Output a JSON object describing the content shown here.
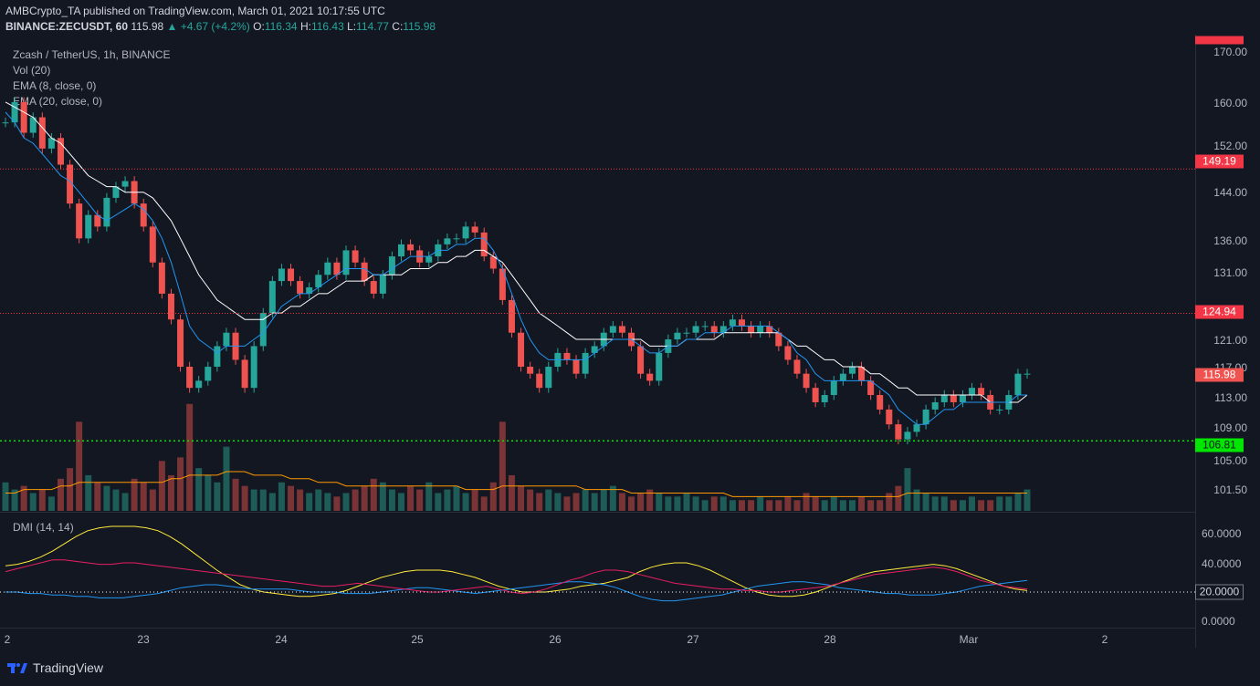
{
  "header": {
    "publisher": "AMBCrypto_TA published on TradingView.com, March 01, 2021 10:17:55 UTC",
    "symbol": "BINANCE:ZECUSDT, 60",
    "last": "115.98",
    "change": "▲ +4.67 (+4.2%)",
    "o_label": "O:",
    "o_value": "116.34",
    "h_label": "H:",
    "h_value": "116.43",
    "l_label": "L:",
    "l_value": "114.77",
    "c_label": "C:",
    "c_value": "115.98"
  },
  "legend": {
    "title": "Zcash / TetherUS, 1h, BINANCE",
    "vol": "Vol (20)",
    "ema8": "EMA (8, close, 0)",
    "ema20": "EMA (20, close, 0)",
    "dmi": "DMI (14, 14)"
  },
  "price_axis": {
    "labels": [
      "170.00",
      "160.00",
      "152.00",
      "144.00",
      "136.00",
      "131.00",
      "121.00",
      "117.00",
      "113.00",
      "109.00",
      "105.00",
      "101.50"
    ],
    "tags": [
      {
        "label": "149.19",
        "color": "#f23645"
      },
      {
        "label": "124.94",
        "color": "#f23645"
      },
      {
        "label": "115.98",
        "color": "#ef5350"
      },
      {
        "label": "106.81",
        "color": "#00e600"
      }
    ]
  },
  "dmi_axis": {
    "labels": [
      "60.0000",
      "40.0000",
      "20.0000",
      "0.0000"
    ]
  },
  "time_axis": {
    "labels": [
      "2",
      "23",
      "24",
      "25",
      "26",
      "27",
      "28",
      "Mar",
      "2"
    ]
  },
  "brand": {
    "name": "TradingView"
  },
  "colors": {
    "up": "#26a69a",
    "down": "#ef5350",
    "ema8": "#2196f3",
    "ema20": "#ffffff",
    "resistance": "#f23645",
    "support": "#00e600",
    "adx": "#ffeb3b",
    "di_plus": "#2196f3",
    "di_minus": "#e91e63"
  },
  "chart_data": {
    "type": "candlestick",
    "title": "Zcash / TetherUS, 1h, BINANCE",
    "x_labels": [
      "2",
      "23",
      "24",
      "25",
      "26",
      "27",
      "28",
      "Mar",
      "2"
    ],
    "y_scale": "log",
    "ylim": [
      98,
      176
    ],
    "horizontal_levels": [
      149.19,
      124.94,
      106.81
    ],
    "price_path": [
      158,
      162,
      156,
      159,
      153,
      155,
      150,
      143,
      137,
      141,
      139,
      144,
      146,
      147,
      143,
      139,
      133,
      128,
      124,
      117,
      114,
      115,
      117,
      120,
      122,
      118,
      114,
      120,
      125,
      130,
      132,
      130,
      128,
      129,
      131,
      133,
      131,
      135,
      133,
      130,
      128,
      131,
      134,
      136,
      135,
      133,
      134,
      136,
      137,
      137,
      139,
      138,
      134,
      132,
      127,
      122,
      117,
      116,
      114,
      117,
      119,
      118,
      116,
      119,
      120,
      122,
      123,
      122,
      120,
      116,
      115,
      119,
      121,
      122,
      122,
      123,
      123,
      122,
      123,
      124,
      123,
      122,
      123,
      122,
      120,
      118,
      116,
      114,
      112,
      113,
      115,
      116,
      117,
      115,
      113,
      111,
      109,
      107,
      108,
      109,
      111,
      112,
      113,
      112,
      113,
      114,
      113,
      111,
      111,
      113,
      116,
      116
    ],
    "ema8": [
      160,
      158,
      155,
      154,
      152,
      150,
      148,
      147,
      145,
      143,
      141,
      140,
      141,
      142,
      143,
      142,
      140,
      137,
      133,
      128,
      123,
      121,
      120,
      119,
      120,
      120,
      120,
      121,
      122,
      124,
      126,
      127,
      128,
      128,
      129,
      130,
      131,
      132,
      132,
      132,
      131,
      131,
      132,
      133,
      134,
      134,
      134,
      135,
      135,
      136,
      136,
      137,
      137,
      135,
      132,
      128,
      124,
      121,
      119,
      118,
      118,
      118,
      118,
      118,
      119,
      120,
      121,
      121,
      121,
      120,
      119,
      119,
      120,
      120,
      121,
      121,
      122,
      122,
      122,
      123,
      123,
      123,
      123,
      123,
      122,
      121,
      119,
      118,
      116,
      115,
      115,
      115,
      115,
      115,
      115,
      114,
      113,
      111,
      110,
      109,
      109,
      110,
      111,
      111,
      112,
      112,
      112,
      112,
      112,
      112,
      113,
      113
    ],
    "ema20": [
      162,
      161,
      160,
      159,
      157,
      155,
      154,
      152,
      150,
      148,
      147,
      146,
      146,
      145,
      145,
      145,
      144,
      142,
      140,
      137,
      134,
      131,
      129,
      127,
      126,
      125,
      124,
      124,
      124,
      125,
      125,
      126,
      126,
      127,
      128,
      128,
      129,
      130,
      130,
      130,
      131,
      131,
      131,
      131,
      132,
      132,
      132,
      133,
      133,
      134,
      134,
      135,
      135,
      134,
      133,
      131,
      129,
      127,
      125,
      124,
      123,
      122,
      121,
      121,
      121,
      121,
      121,
      121,
      121,
      121,
      120,
      120,
      120,
      120,
      121,
      121,
      121,
      121,
      122,
      122,
      122,
      122,
      122,
      122,
      122,
      121,
      120,
      120,
      119,
      118,
      118,
      117,
      117,
      117,
      116,
      116,
      115,
      114,
      114,
      113,
      113,
      113,
      113,
      113,
      113,
      113,
      113,
      112,
      112,
      112,
      112,
      113
    ],
    "volume": [
      8,
      6,
      7,
      5,
      6,
      4,
      9,
      12,
      25,
      10,
      8,
      7,
      6,
      5,
      9,
      8,
      6,
      14,
      10,
      15,
      30,
      12,
      10,
      8,
      18,
      9,
      7,
      6,
      6,
      5,
      8,
      7,
      6,
      5,
      6,
      5,
      4,
      5,
      6,
      7,
      9,
      8,
      6,
      5,
      7,
      6,
      8,
      5,
      6,
      7,
      5,
      6,
      4,
      8,
      25,
      10,
      7,
      6,
      5,
      6,
      5,
      4,
      5,
      6,
      5,
      6,
      7,
      5,
      4,
      5,
      6,
      5,
      4,
      4,
      5,
      4,
      3,
      4,
      4,
      3,
      3,
      3,
      4,
      3,
      3,
      4,
      3,
      5,
      4,
      3,
      4,
      3,
      3,
      4,
      3,
      3,
      5,
      7,
      12,
      6,
      5,
      4,
      4,
      3,
      3,
      4,
      3,
      3,
      4,
      4,
      5,
      6
    ],
    "volume_ma": [
      5,
      5,
      6,
      6,
      6,
      6,
      7,
      7,
      8,
      8,
      8,
      8,
      8,
      8,
      8,
      8,
      8,
      8,
      9,
      9,
      10,
      10,
      10,
      10,
      11,
      11,
      11,
      10,
      10,
      10,
      10,
      9,
      9,
      9,
      8,
      8,
      8,
      7,
      7,
      7,
      7,
      7,
      7,
      7,
      7,
      7,
      7,
      7,
      7,
      7,
      6,
      6,
      6,
      6,
      7,
      7,
      7,
      7,
      7,
      7,
      7,
      7,
      7,
      6,
      6,
      6,
      6,
      6,
      5,
      5,
      5,
      5,
      5,
      5,
      5,
      5,
      5,
      5,
      5,
      4,
      4,
      4,
      4,
      4,
      4,
      4,
      4,
      4,
      4,
      4,
      4,
      4,
      4,
      4,
      4,
      4,
      4,
      4,
      5,
      5,
      5,
      5,
      5,
      5,
      5,
      5,
      5,
      5,
      5,
      5,
      5,
      5
    ],
    "dmi": {
      "adx": [
        38,
        39,
        41,
        44,
        48,
        53,
        58,
        62,
        64,
        65,
        65,
        65,
        64,
        62,
        58,
        53,
        47,
        41,
        35,
        30,
        25,
        22,
        20,
        19,
        18,
        17,
        17,
        18,
        19,
        21,
        24,
        27,
        30,
        32,
        34,
        35,
        35,
        35,
        34,
        32,
        30,
        27,
        24,
        22,
        20,
        20,
        20,
        21,
        22,
        24,
        25,
        26,
        28,
        30,
        34,
        37,
        39,
        40,
        40,
        38,
        35,
        31,
        27,
        23,
        20,
        18,
        17,
        17,
        18,
        20,
        23,
        26,
        29,
        32,
        34,
        35,
        36,
        37,
        38,
        39,
        38,
        36,
        33,
        30,
        27,
        24,
        22,
        21
      ],
      "di_plus": [
        20,
        20,
        19,
        19,
        18,
        18,
        17,
        17,
        16,
        16,
        16,
        17,
        18,
        19,
        21,
        23,
        24,
        25,
        25,
        24,
        23,
        22,
        22,
        22,
        22,
        21,
        20,
        20,
        20,
        19,
        19,
        19,
        20,
        21,
        22,
        23,
        23,
        22,
        21,
        20,
        19,
        20,
        21,
        22,
        23,
        24,
        25,
        26,
        27,
        27,
        26,
        25,
        23,
        20,
        17,
        15,
        14,
        14,
        15,
        16,
        17,
        18,
        20,
        22,
        24,
        25,
        26,
        27,
        27,
        26,
        25,
        23,
        22,
        21,
        20,
        19,
        19,
        18,
        18,
        18,
        19,
        20,
        22,
        24,
        25,
        26,
        27,
        28
      ],
      "di_minus": [
        34,
        36,
        38,
        40,
        42,
        42,
        41,
        40,
        39,
        39,
        40,
        40,
        39,
        38,
        37,
        36,
        35,
        34,
        33,
        32,
        31,
        30,
        29,
        28,
        27,
        26,
        25,
        24,
        24,
        25,
        26,
        25,
        24,
        23,
        22,
        21,
        20,
        20,
        21,
        22,
        23,
        24,
        22,
        20,
        19,
        20,
        22,
        25,
        28,
        30,
        33,
        35,
        35,
        34,
        32,
        30,
        28,
        26,
        25,
        24,
        23,
        22,
        22,
        21,
        21,
        20,
        20,
        21,
        22,
        23,
        24,
        26,
        28,
        30,
        32,
        33,
        34,
        35,
        36,
        37,
        36,
        34,
        31,
        28,
        26,
        24,
        23,
        22
      ],
      "ylim": [
        0,
        70
      ]
    }
  }
}
